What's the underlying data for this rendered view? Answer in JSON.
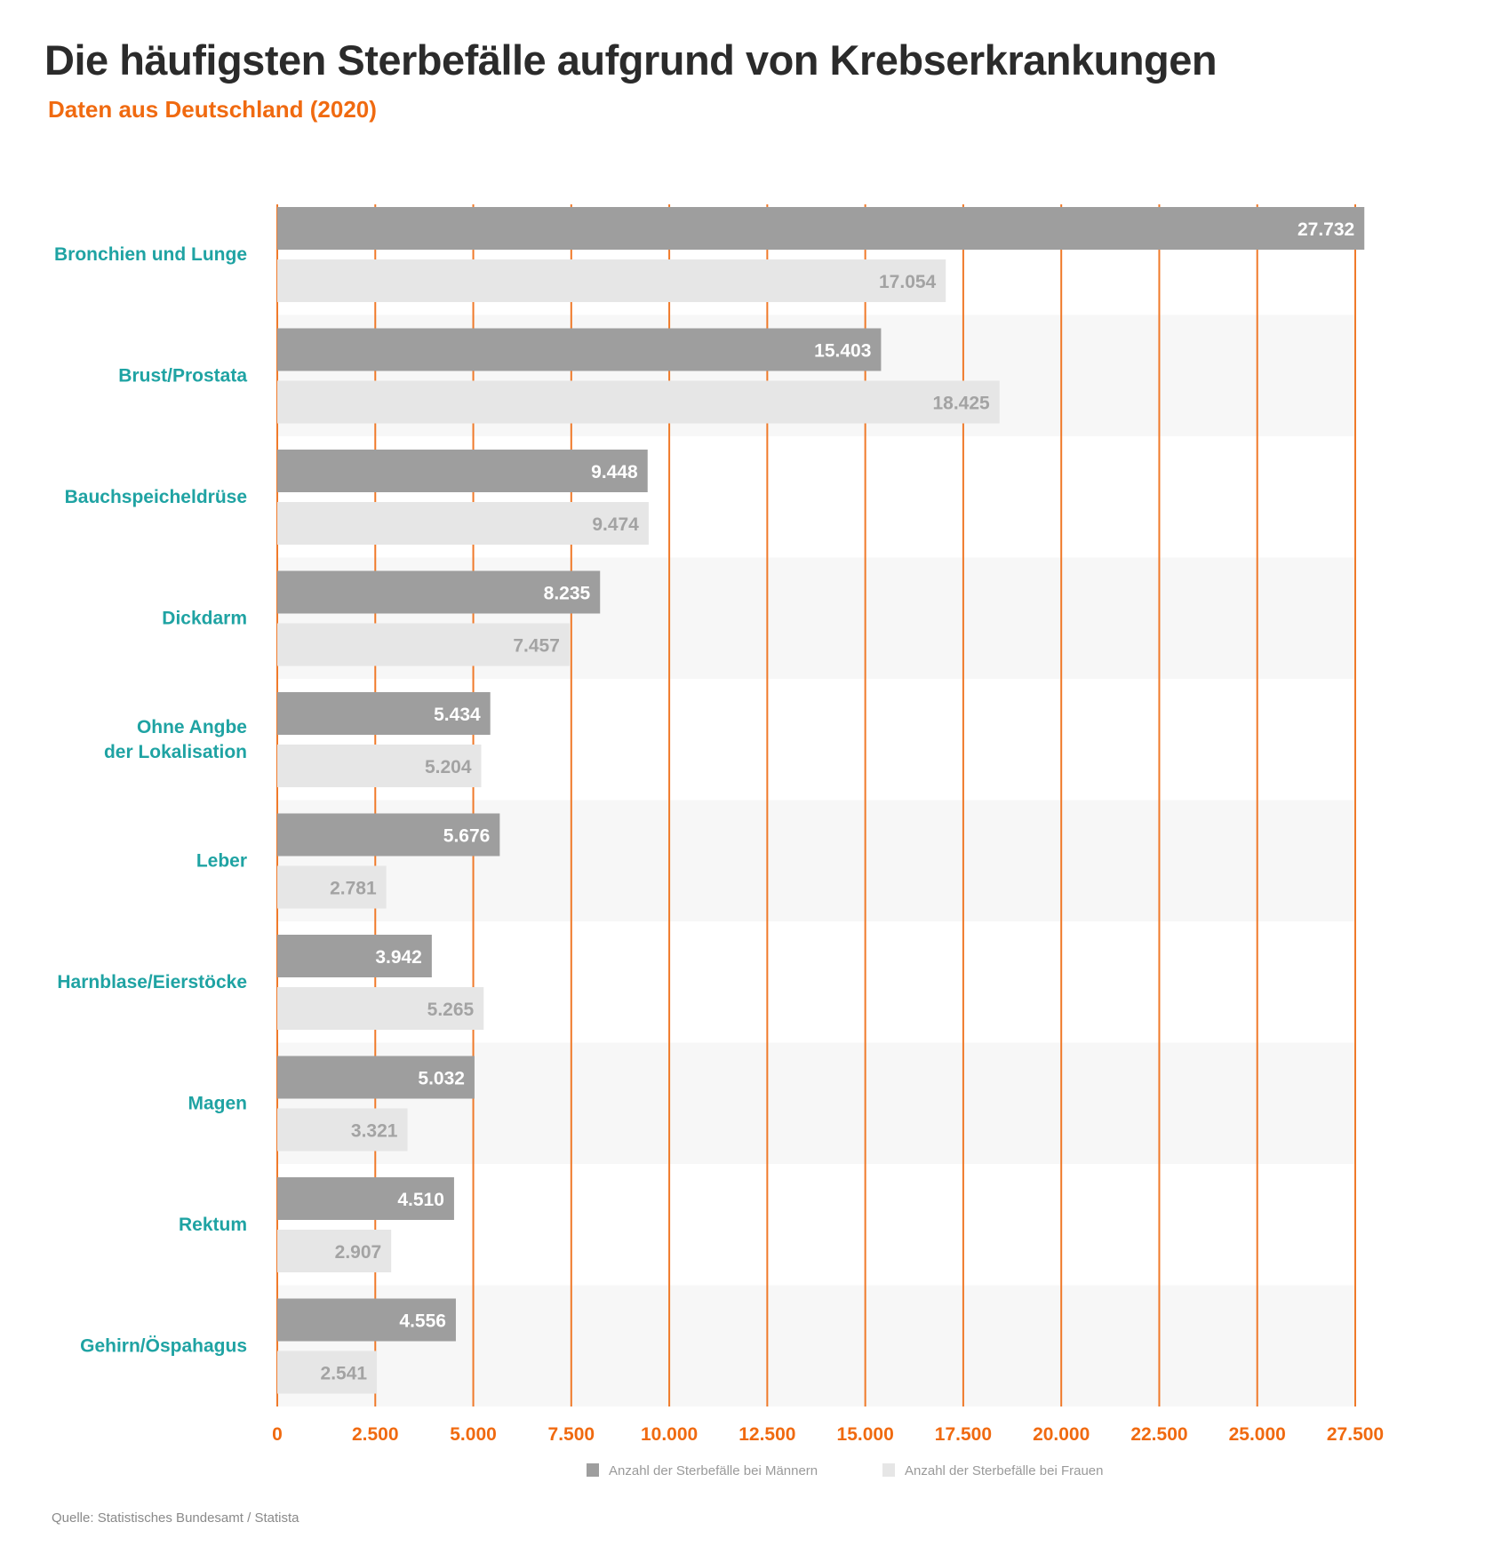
{
  "title": "Die häufigsten Sterbefälle aufgrund von Krebserkrankungen",
  "subtitle": "Daten aus Deutschland (2020)",
  "source": "Quelle: Statistisches Bundesamt / Statista",
  "colors": {
    "men": "#9e9e9e",
    "women": "#e6e6e6",
    "grid": "#f07a2a",
    "category": "#1fa3a3",
    "band": "#f7f7f7",
    "tick": "#f06a10"
  },
  "chart_data": {
    "type": "bar",
    "orientation": "horizontal",
    "categories": [
      "Bronchien und Lunge",
      "Brust/Prostata",
      "Bauchspeicheldrüse",
      "Dickdarm",
      "Ohne Angbe\nder Lokalisation",
      "Leber",
      "Harnblase/Eierstöcke",
      "Magen",
      "Rektum",
      "Gehirn/Öspahagus"
    ],
    "series": [
      {
        "name": "Anzahl der Sterbefälle bei Männern",
        "values": [
          27732,
          15403,
          9448,
          8235,
          5434,
          5676,
          3942,
          5032,
          4510,
          4556
        ],
        "labels": [
          "27.732",
          "15.403",
          "9.448",
          "8.235",
          "5.434",
          "5.676",
          "3.942",
          "5.032",
          "4.510",
          "4.556"
        ]
      },
      {
        "name": "Anzahl der Sterbefälle bei Frauen",
        "values": [
          17054,
          18425,
          9474,
          7457,
          5204,
          2781,
          5265,
          3321,
          2907,
          2541
        ],
        "labels": [
          "17.054",
          "18.425",
          "9.474",
          "7.457",
          "5.204",
          "2.781",
          "5.265",
          "3.321",
          "2.907",
          "2.541"
        ]
      }
    ],
    "xlim": [
      0,
      27500
    ],
    "ticks": [
      0,
      2500,
      5000,
      7500,
      10000,
      12500,
      15000,
      17500,
      20000,
      22500,
      25000,
      27500
    ],
    "tick_labels": [
      "0",
      "2.500",
      "5.000",
      "7.500",
      "10.000",
      "12.500",
      "15.000",
      "17.500",
      "20.000",
      "22.500",
      "25.000",
      "27.500"
    ],
    "grid": true,
    "legend": "bottom"
  }
}
